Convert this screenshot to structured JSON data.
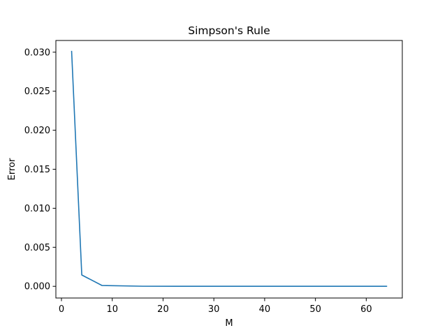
{
  "chart_data": {
    "type": "line",
    "title": "Simpson's Rule",
    "xlabel": "M",
    "ylabel": "Error",
    "xlim": [
      -1.1,
      67.1
    ],
    "ylim": [
      -0.0015,
      0.0315
    ],
    "xticks": [
      0,
      10,
      20,
      30,
      40,
      50,
      60
    ],
    "yticks": [
      0.0,
      0.005,
      0.01,
      0.015,
      0.02,
      0.025,
      0.03
    ],
    "xtick_labels": [
      "0",
      "10",
      "20",
      "30",
      "40",
      "50",
      "60"
    ],
    "ytick_labels": [
      "0.000",
      "0.005",
      "0.010",
      "0.015",
      "0.020",
      "0.025",
      "0.030"
    ],
    "grid": false,
    "series": [
      {
        "color": "#1f77b4",
        "x": [
          2,
          4,
          8,
          16,
          32,
          64
        ],
        "y": [
          0.0301,
          0.00145,
          0.0001,
          1e-05,
          0.0,
          0.0
        ]
      }
    ]
  }
}
